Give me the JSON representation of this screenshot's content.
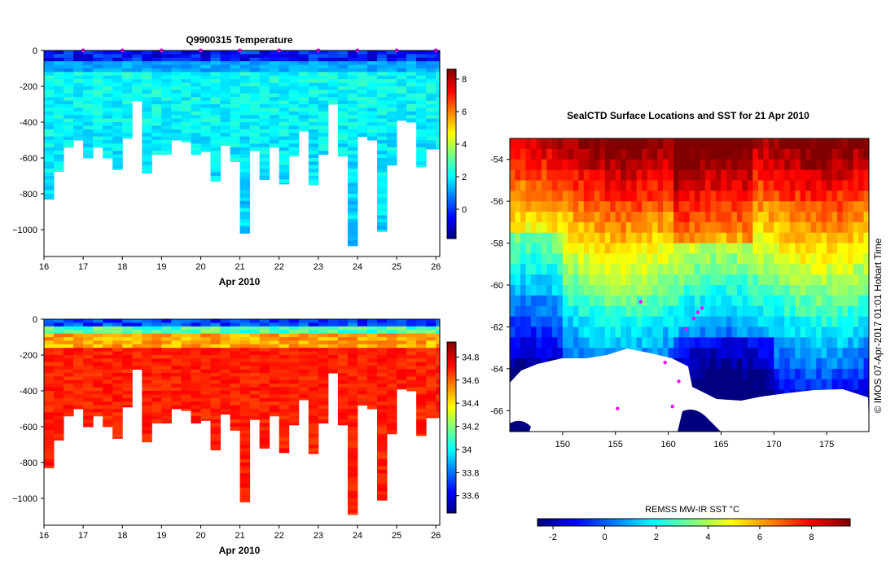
{
  "colors": {
    "white": "#ffffff",
    "frame": "#000000",
    "track_marker": "#ff00ff",
    "land": "#ffffff"
  },
  "chart_data": [
    {
      "id": "temperature_section",
      "type": "heatmap",
      "title": "Q9900315  Temperature",
      "xlabel": "Apr 2010",
      "ylabel": "",
      "xlim": [
        16,
        26.1
      ],
      "ylim": [
        -1150,
        0
      ],
      "x_ticks": [
        {
          "value": 16,
          "label": "16"
        },
        {
          "value": 17,
          "label": "17"
        },
        {
          "value": 18,
          "label": "18"
        },
        {
          "value": 19,
          "label": "19"
        },
        {
          "value": 20,
          "label": "20"
        },
        {
          "value": 21,
          "label": "21"
        },
        {
          "value": 22,
          "label": "22"
        },
        {
          "value": 23,
          "label": "23"
        },
        {
          "value": 24,
          "label": "24"
        },
        {
          "value": 25,
          "label": "25"
        },
        {
          "value": 26,
          "label": "26"
        }
      ],
      "y_ticks": [
        {
          "value": 0,
          "label": "0"
        },
        {
          "value": -200,
          "label": "-200"
        },
        {
          "value": -400,
          "label": "-400"
        },
        {
          "value": -600,
          "label": "-600"
        },
        {
          "value": -800,
          "label": "-800"
        },
        {
          "value": -1000,
          "label": "−1000"
        }
      ],
      "profile_times": [
        16.0,
        16.25,
        16.5,
        16.75,
        17.0,
        17.25,
        17.5,
        17.75,
        18.0,
        18.25,
        18.5,
        18.75,
        19.0,
        19.25,
        19.5,
        19.75,
        20.0,
        20.25,
        20.5,
        20.75,
        21.0,
        21.25,
        21.5,
        21.75,
        22.0,
        22.25,
        22.5,
        22.75,
        23.0,
        23.25,
        23.5,
        23.75,
        24.0,
        24.25,
        24.5,
        24.75,
        25.0,
        25.25,
        25.5,
        25.75,
        26.0
      ],
      "profile_max_depth": [
        -830,
        -675,
        -540,
        -500,
        -600,
        -540,
        -600,
        -665,
        -490,
        -280,
        -685,
        -580,
        -580,
        -500,
        -510,
        -580,
        -565,
        -730,
        -530,
        -620,
        -1020,
        -560,
        -720,
        -540,
        -745,
        -590,
        -450,
        -750,
        -580,
        -300,
        -590,
        -1090,
        -480,
        -500,
        -1010,
        -640,
        -390,
        -400,
        -650,
        -550,
        -550
      ],
      "surface_temperature_range": [
        -1.2,
        0.6
      ],
      "subsurface_temperature_range": [
        1.5,
        2.6
      ],
      "surface_marker_times": [
        17,
        18,
        19,
        20,
        21,
        22,
        23,
        24,
        25,
        26
      ],
      "colorbar": {
        "min": -1.8,
        "max": 8.6,
        "ticks": [
          {
            "value": 0,
            "label": "0"
          },
          {
            "value": 2,
            "label": "2"
          },
          {
            "value": 4,
            "label": "4"
          },
          {
            "value": 6,
            "label": "6"
          },
          {
            "value": 8,
            "label": "8"
          }
        ]
      }
    },
    {
      "id": "salinity_section",
      "type": "heatmap",
      "title": "",
      "xlabel": "Apr 2010",
      "ylabel": "",
      "xlim": [
        16,
        26.1
      ],
      "ylim": [
        -1150,
        0
      ],
      "x_ticks": [
        {
          "value": 16,
          "label": "16"
        },
        {
          "value": 17,
          "label": "17"
        },
        {
          "value": 18,
          "label": "18"
        },
        {
          "value": 19,
          "label": "19"
        },
        {
          "value": 20,
          "label": "20"
        },
        {
          "value": 21,
          "label": "21"
        },
        {
          "value": 22,
          "label": "22"
        },
        {
          "value": 23,
          "label": "23"
        },
        {
          "value": 24,
          "label": "24"
        },
        {
          "value": 25,
          "label": "25"
        },
        {
          "value": 26,
          "label": "26"
        }
      ],
      "y_ticks": [
        {
          "value": 0,
          "label": "0"
        },
        {
          "value": -200,
          "label": "-200"
        },
        {
          "value": -400,
          "label": "-400"
        },
        {
          "value": -600,
          "label": "-600"
        },
        {
          "value": -800,
          "label": "-800"
        },
        {
          "value": -1000,
          "label": "−1000"
        }
      ],
      "surface_salinity_range": [
        33.6,
        33.85
      ],
      "deep_salinity_range": [
        34.65,
        34.75
      ],
      "colorbar": {
        "min": 33.45,
        "max": 34.93,
        "ticks": [
          {
            "value": 33.6,
            "label": "33.6"
          },
          {
            "value": 33.8,
            "label": "33.8"
          },
          {
            "value": 34.0,
            "label": "34"
          },
          {
            "value": 34.2,
            "label": "34.2"
          },
          {
            "value": 34.4,
            "label": "34.4"
          },
          {
            "value": 34.6,
            "label": "34.6"
          },
          {
            "value": 34.8,
            "label": "34.8"
          }
        ]
      }
    },
    {
      "id": "sst_map",
      "type": "heatmap",
      "title": "SealCTD Surface Locations and SST for 21 Apr 2010",
      "xlabel": "",
      "ylabel": "",
      "xlim": [
        145,
        179
      ],
      "ylim": [
        -67,
        -53
      ],
      "x_ticks": [
        {
          "value": 150,
          "label": "150"
        },
        {
          "value": 155,
          "label": "155"
        },
        {
          "value": 160,
          "label": "160"
        },
        {
          "value": 165,
          "label": "165"
        },
        {
          "value": 170,
          "label": "170"
        },
        {
          "value": 175,
          "label": "175"
        }
      ],
      "y_ticks": [
        {
          "value": -54,
          "label": "-54"
        },
        {
          "value": -56,
          "label": "-56"
        },
        {
          "value": -58,
          "label": "-58"
        },
        {
          "value": -60,
          "label": "-60"
        },
        {
          "value": -62,
          "label": "-62"
        },
        {
          "value": -64,
          "label": "-64"
        },
        {
          "value": -66,
          "label": "-66"
        }
      ],
      "track_points": [
        {
          "lon": 162.4,
          "lat": -61.6
        },
        {
          "lon": 162.8,
          "lat": -61.3
        },
        {
          "lon": 163.2,
          "lat": -61.1
        },
        {
          "lon": 161.7,
          "lat": -62.1
        },
        {
          "lon": 159.7,
          "lat": -63.7
        },
        {
          "lon": 157.4,
          "lat": -60.8
        },
        {
          "lon": 155.2,
          "lat": -65.9
        },
        {
          "lon": 160.4,
          "lat": -65.8
        },
        {
          "lon": 161.0,
          "lat": -64.6
        }
      ],
      "colorbar": {
        "label": "REMSS MW-IR SST °C",
        "min": -2.6,
        "max": 9.5,
        "ticks": [
          {
            "value": -2,
            "label": "-2"
          },
          {
            "value": 0,
            "label": "0"
          },
          {
            "value": 2,
            "label": "2"
          },
          {
            "value": 4,
            "label": "4"
          },
          {
            "value": 6,
            "label": "6"
          },
          {
            "value": 8,
            "label": "8"
          }
        ]
      }
    }
  ],
  "footer": {
    "credit": "© IMOS 07-Apr-2017 01:01 Hobart Time"
  }
}
